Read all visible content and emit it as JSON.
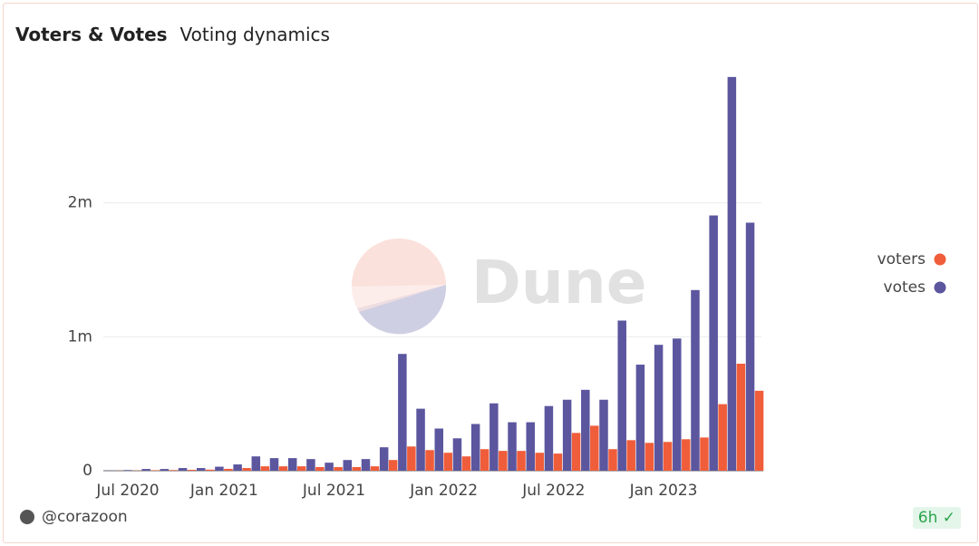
{
  "header": {
    "title": "Voters & Votes",
    "subtitle": "Voting dynamics"
  },
  "watermark": "Dune",
  "footer": {
    "author": "@corazoon",
    "freshness": "6h"
  },
  "chart_data": {
    "type": "bar",
    "x": [
      "2020-06",
      "2020-07",
      "2020-08",
      "2020-09",
      "2020-10",
      "2020-11",
      "2020-12",
      "2021-01",
      "2021-02",
      "2021-03",
      "2021-04",
      "2021-05",
      "2021-06",
      "2021-07",
      "2021-08",
      "2021-09",
      "2021-10",
      "2021-11",
      "2021-12",
      "2022-01",
      "2022-02",
      "2022-03",
      "2022-04",
      "2022-05",
      "2022-06",
      "2022-07",
      "2022-08",
      "2022-09",
      "2022-10",
      "2022-11",
      "2022-12",
      "2023-01",
      "2023-02",
      "2023-03",
      "2023-04",
      "2023-05"
    ],
    "series": [
      {
        "name": "voters",
        "color": "#f05d3a",
        "values": [
          1000,
          2000,
          4000,
          5000,
          7000,
          8000,
          14000,
          20000,
          33000,
          33000,
          33000,
          27000,
          27000,
          27000,
          33000,
          80000,
          181000,
          154000,
          134000,
          107000,
          161000,
          148000,
          148000,
          134000,
          128000,
          282000,
          336000,
          161000,
          228000,
          208000,
          215000,
          235000,
          248000,
          497000,
          799000,
          597000
        ]
      },
      {
        "name": "votes",
        "color": "#5b569e",
        "values": [
          2000,
          5000,
          13000,
          13000,
          20000,
          20000,
          30000,
          47000,
          107000,
          94000,
          94000,
          87000,
          60000,
          80000,
          87000,
          175000,
          872000,
          463000,
          315000,
          242000,
          349000,
          503000,
          362000,
          362000,
          483000,
          530000,
          604000,
          530000,
          1121000,
          792000,
          940000,
          987000,
          1349000,
          1906000,
          2940000,
          1852000
        ]
      }
    ],
    "xlim": [
      "2020-06",
      "2023-06"
    ],
    "xticks": [
      {
        "value": "2020-07",
        "label": "Jul 2020"
      },
      {
        "value": "2021-01",
        "label": "Jan 2021"
      },
      {
        "value": "2021-07",
        "label": "Jul 2021"
      },
      {
        "value": "2022-01",
        "label": "Jan 2022"
      },
      {
        "value": "2022-07",
        "label": "Jul 2022"
      },
      {
        "value": "2023-01",
        "label": "Jan 2023"
      }
    ],
    "ylim": [
      0,
      3000000
    ],
    "yticks": [
      0,
      {
        "value": 1000000,
        "label": "1m"
      },
      {
        "value": 2000000,
        "label": "2m"
      }
    ],
    "grid": true,
    "legend": "right"
  }
}
